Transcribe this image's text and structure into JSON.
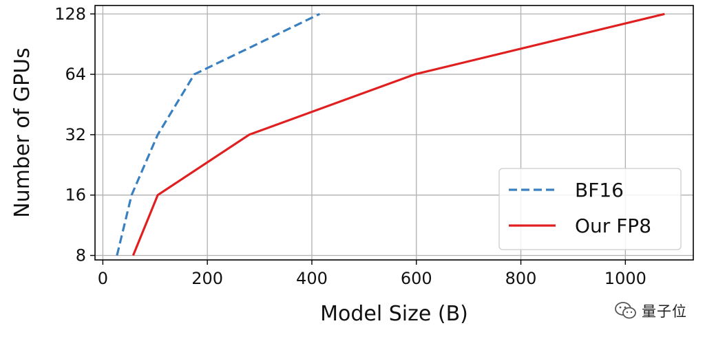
{
  "chart_data": {
    "type": "line",
    "title": "",
    "xlabel": "Model Size (B)",
    "ylabel": "Number of GPUs",
    "xlim": [
      -15,
      1130
    ],
    "ylim": [
      7.6,
      141
    ],
    "yscale": "log2",
    "xticks": [
      0,
      200,
      400,
      600,
      800,
      1000
    ],
    "yticks": [
      8,
      16,
      32,
      64,
      128
    ],
    "grid": true,
    "legend_position": "lower-right",
    "series": [
      {
        "name": "BF16",
        "color": "#3a80c0",
        "style": "dashed",
        "points": [
          [
            27,
            8
          ],
          [
            55,
            16
          ],
          [
            105,
            32
          ],
          [
            175,
            64
          ],
          [
            415,
            128
          ]
        ]
      },
      {
        "name": "Our FP8",
        "color": "#e02020",
        "style": "solid",
        "points": [
          [
            58,
            8
          ],
          [
            105,
            16
          ],
          [
            280,
            32
          ],
          [
            597,
            64
          ],
          [
            1075,
            128
          ]
        ]
      }
    ]
  },
  "watermark": {
    "text": "量子位",
    "icon": "wechat-icon"
  }
}
